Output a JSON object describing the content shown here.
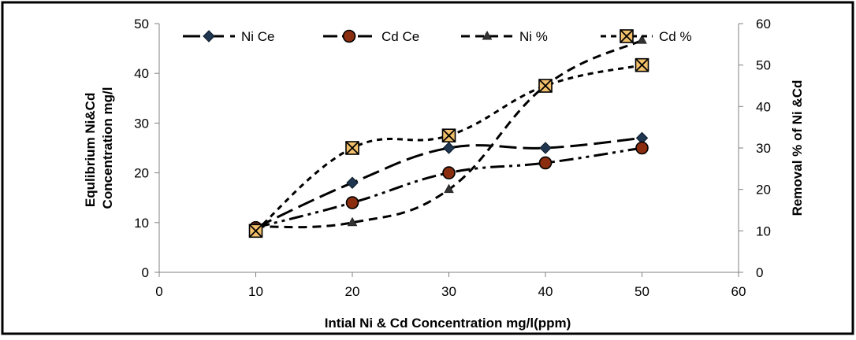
{
  "chart_data": {
    "type": "line",
    "xlabel": "Intial Ni & Cd Concentration mg/l(ppm)",
    "ylabel_lines": [
      "Equlibrium Ni&Cd",
      "Concentration mg/l"
    ],
    "y2label": "Removal % of Ni &Cd",
    "xlim": [
      0,
      60
    ],
    "ylim": [
      0,
      50
    ],
    "y2lim": [
      0,
      60
    ],
    "x_ticks": [
      "0",
      "10",
      "20",
      "30",
      "40",
      "50",
      "60"
    ],
    "y_ticks": [
      "0",
      "10",
      "20",
      "30",
      "40",
      "50"
    ],
    "y2_ticks": [
      "0",
      "10",
      "20",
      "30",
      "40",
      "50",
      "60"
    ],
    "grid": false,
    "legend_position": "top",
    "series": [
      {
        "name": "Ni Ce",
        "axis": "left",
        "marker": "diamond",
        "dash": "long-dash",
        "x": [
          10,
          20,
          30,
          40,
          50
        ],
        "values": [
          9,
          18,
          25,
          25,
          27
        ]
      },
      {
        "name": "Cd Ce",
        "axis": "left",
        "marker": "circle",
        "dash": "long-dash-dot-dot",
        "x": [
          10,
          20,
          30,
          40,
          50
        ],
        "values": [
          9,
          14,
          20,
          22,
          25
        ]
      },
      {
        "name": "Ni %",
        "axis": "right",
        "marker": "triangle",
        "dash": "dash",
        "x": [
          10,
          20,
          30,
          40,
          50
        ],
        "values": [
          11,
          12,
          20,
          45,
          56
        ]
      },
      {
        "name": "Cd %",
        "axis": "right",
        "marker": "box-x",
        "dash": "short-dash",
        "x": [
          10,
          20,
          30,
          40,
          50
        ],
        "values": [
          10,
          30,
          33,
          45,
          50
        ]
      }
    ]
  }
}
